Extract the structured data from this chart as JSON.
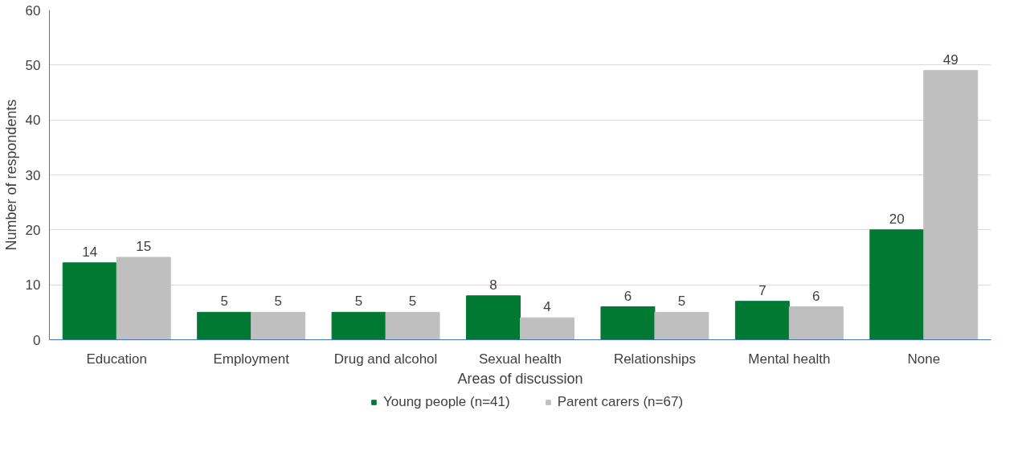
{
  "chart_data": {
    "type": "bar",
    "xlabel": "Areas of discussion",
    "ylabel": "Number of respondents",
    "categories": [
      "Education",
      "Employment",
      "Drug and alcohol",
      "Sexual health",
      "Relationships",
      "Mental health",
      "None"
    ],
    "series": [
      {
        "name": "Young people (n=41)",
        "color": "#007a33",
        "values": [
          14,
          5,
          5,
          8,
          6,
          7,
          20
        ]
      },
      {
        "name": "Parent carers (n=67)",
        "color": "#bfbfbf",
        "values": [
          15,
          5,
          5,
          4,
          5,
          6,
          49
        ]
      }
    ],
    "ylim": [
      0,
      60
    ],
    "yticks": [
      0,
      10,
      20,
      30,
      40,
      50,
      60
    ],
    "grid": "y",
    "legend": "bottom",
    "data_labels": true
  }
}
